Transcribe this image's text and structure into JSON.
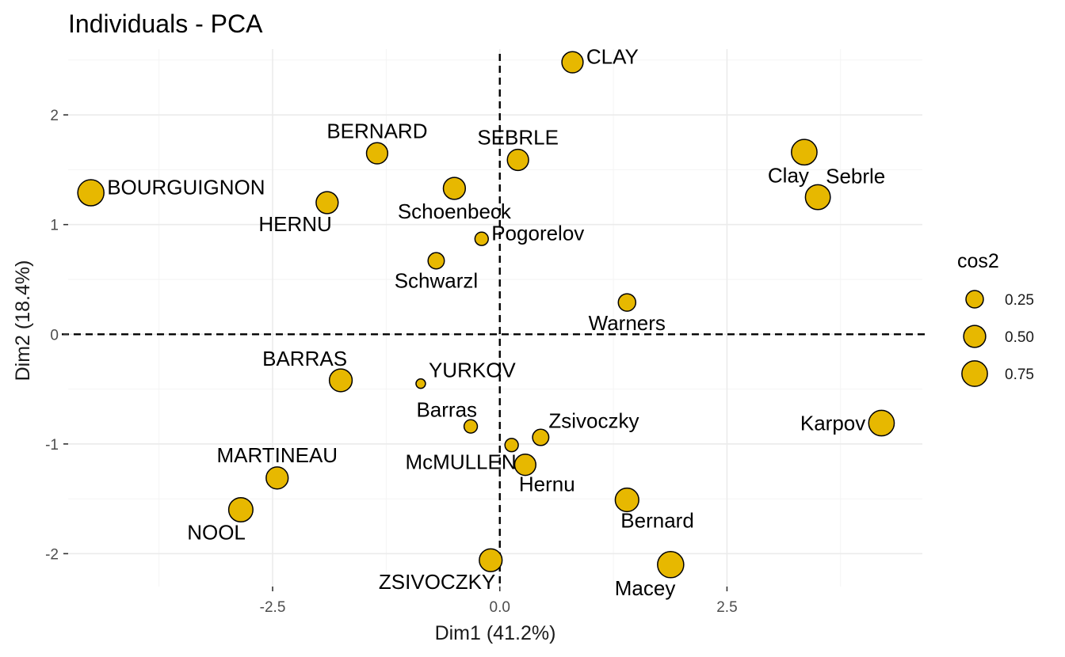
{
  "chart_data": {
    "type": "scatter",
    "title": "Individuals - PCA",
    "xlabel": "Dim1 (41.2%)",
    "ylabel": "Dim2 (18.4%)",
    "xlim": [
      -4.75,
      4.65
    ],
    "ylim": [
      -2.3,
      2.6
    ],
    "x_ticks": [
      -2.5,
      0,
      2.5
    ],
    "x_tick_labels": [
      "-2.5",
      "0.0",
      "2.5"
    ],
    "y_ticks": [
      -2,
      -1,
      0,
      1,
      2
    ],
    "y_tick_labels": [
      "-2",
      "-1",
      "0",
      "1",
      "2"
    ],
    "grid": true,
    "reference_lines": {
      "x": 0,
      "y": 0,
      "style": "dashed"
    },
    "point_color": "#E7B800",
    "legend": {
      "title": "cos2",
      "position": "right",
      "items": [
        {
          "label": "0.25",
          "value": 0.25
        },
        {
          "label": "0.50",
          "value": 0.5
        },
        {
          "label": "0.75",
          "value": 0.75
        }
      ]
    },
    "points": [
      {
        "label": "CLAY",
        "x": 0.8,
        "y": 2.48,
        "cos2": 0.45,
        "label_pos": "right"
      },
      {
        "label": "BERNARD",
        "x": -1.35,
        "y": 1.65,
        "cos2": 0.45,
        "label_pos": "above"
      },
      {
        "label": "SEBRLE",
        "x": 0.2,
        "y": 1.59,
        "cos2": 0.45,
        "label_pos": "above"
      },
      {
        "label": "Clay",
        "x": 3.35,
        "y": 1.66,
        "cos2": 0.75,
        "label_pos": "below-left"
      },
      {
        "label": "BOURGUIGNON",
        "x": -4.5,
        "y": 1.29,
        "cos2": 0.8,
        "label_pos": "right"
      },
      {
        "label": "Schoenbeck",
        "x": -0.5,
        "y": 1.33,
        "cos2": 0.5,
        "label_pos": "below"
      },
      {
        "label": "HERNU",
        "x": -1.9,
        "y": 1.2,
        "cos2": 0.5,
        "label_pos": "below-left"
      },
      {
        "label": "Sebrle",
        "x": 3.5,
        "y": 1.25,
        "cos2": 0.7,
        "label_pos": "above-right"
      },
      {
        "label": "Pogorelov",
        "x": -0.2,
        "y": 0.87,
        "cos2": 0.1,
        "label_pos": "right"
      },
      {
        "label": "Schwarzl",
        "x": -0.7,
        "y": 0.67,
        "cos2": 0.2,
        "label_pos": "below"
      },
      {
        "label": "Warners",
        "x": 1.4,
        "y": 0.29,
        "cos2": 0.25,
        "label_pos": "below"
      },
      {
        "label": "BARRAS",
        "x": -1.75,
        "y": -0.42,
        "cos2": 0.55,
        "label_pos": "above-left"
      },
      {
        "label": "YURKOV",
        "x": -0.87,
        "y": -0.45,
        "cos2": 0.02,
        "label_pos": "above-right"
      },
      {
        "label": "Barras",
        "x": -0.32,
        "y": -0.84,
        "cos2": 0.1,
        "label_pos": "above-left"
      },
      {
        "label": "Zsivoczky",
        "x": 0.45,
        "y": -0.94,
        "cos2": 0.2,
        "label_pos": "above-right"
      },
      {
        "label": "Karpov",
        "x": 4.2,
        "y": -0.81,
        "cos2": 0.75,
        "label_pos": "left"
      },
      {
        "label": "McMULLEN",
        "x": 0.13,
        "y": -1.01,
        "cos2": 0.1,
        "label_pos": "below-left"
      },
      {
        "label": "Hernu",
        "x": 0.28,
        "y": -1.19,
        "cos2": 0.45,
        "label_pos": "below-right"
      },
      {
        "label": "MARTINEAU",
        "x": -2.45,
        "y": -1.31,
        "cos2": 0.5,
        "label_pos": "above"
      },
      {
        "label": "Bernard",
        "x": 1.4,
        "y": -1.51,
        "cos2": 0.6,
        "label_pos": "below-right"
      },
      {
        "label": "NOOL",
        "x": -2.85,
        "y": -1.6,
        "cos2": 0.65,
        "label_pos": "below-left"
      },
      {
        "label": "ZSIVOCZKY",
        "x": -0.1,
        "y": -2.06,
        "cos2": 0.55,
        "label_pos": "below-left"
      },
      {
        "label": "Macey",
        "x": 1.88,
        "y": -2.1,
        "cos2": 0.8,
        "label_pos": "below-left"
      }
    ]
  }
}
